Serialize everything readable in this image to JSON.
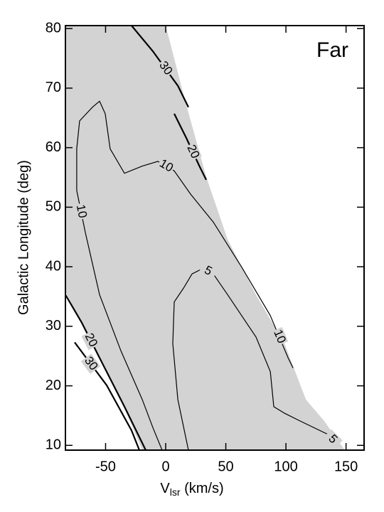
{
  "chart_data": {
    "type": "contour",
    "annotation": "Far",
    "x_label": {
      "main": "V",
      "sub": "lsr",
      "rest": " (km/s)"
    },
    "y_label": "Galactic Longitude (deg)",
    "xlim": [
      -83.4,
      165
    ],
    "ylim": [
      9.2,
      80.5
    ],
    "xticks": [
      -50,
      0,
      50,
      100,
      150
    ],
    "yticks": [
      10,
      20,
      30,
      40,
      50,
      60,
      70,
      80
    ],
    "shaded_region": {
      "color": "#d3d3d3",
      "x": [
        -83.4,
        0,
        16,
        33.7,
        51.5,
        75.1,
        98.8,
        116.6,
        131.4,
        149,
        -19.5,
        -37.3,
        -61,
        -83.4
      ],
      "y": [
        80.5,
        80.5,
        68.0,
        55.1,
        44.6,
        35.3,
        27.1,
        17.7,
        14.2,
        9.2,
        9.2,
        17.7,
        27.1,
        35.8
      ]
    },
    "series": [
      {
        "name": "30",
        "color": "#000000",
        "x": [
          -28.4,
          -10.7,
          10.1,
          18.9
        ],
        "y": [
          80.5,
          76.2,
          70.4,
          66.8
        ]
      },
      {
        "name": "20",
        "color": "#000000",
        "x": [
          7.1,
          17.2,
          27.8,
          33.7
        ],
        "y": [
          65.7,
          61.6,
          57.0,
          54.6
        ]
      },
      {
        "name": "10",
        "color": "#000000",
        "x": [
          -3.0,
          -10.7,
          -19.5,
          -37.3,
          -55.0,
          -66.9,
          -74.0,
          -74.0,
          -71.6,
          -60.9,
          -55.0,
          -50.3,
          -46.2,
          -34.3,
          -19.5,
          -6.5,
          7.1,
          20.7,
          39.6,
          63.3,
          87.0,
          101.8,
          105.9
        ],
        "y": [
          9.2,
          13.0,
          17.7,
          25.9,
          35.3,
          45.8,
          52.8,
          59.8,
          64.5,
          66.8,
          67.8,
          65.7,
          59.8,
          55.7,
          56.9,
          57.7,
          56.1,
          52.2,
          47.5,
          39.9,
          31.8,
          24.7,
          23.0
        ]
      },
      {
        "name": "5",
        "color": "#000000",
        "x": [
          18.9,
          10.1,
          5.9,
          7.1,
          14.8,
          21.9,
          30.8,
          39.6,
          51.5,
          75.1,
          87.0,
          89.9,
          98.8,
          110.7,
          134.3,
          143.2
        ],
        "y": [
          9.2,
          17.7,
          27.1,
          34.1,
          36.4,
          38.8,
          39.7,
          38.8,
          35.3,
          28.2,
          22.4,
          16.5,
          15.4,
          14.2,
          11.9,
          10.1
        ]
      },
      {
        "name": "20",
        "color": "#000000",
        "x": [
          -83.4,
          -69.8,
          -55.0,
          -34.3,
          -16.6
        ],
        "y": [
          35.3,
          30.6,
          24.7,
          16.5,
          9.2
        ]
      },
      {
        "name": "30",
        "color": "#000000",
        "x": [
          -75.7,
          -49.1,
          -28.4,
          -21.9
        ],
        "y": [
          27.3,
          20.1,
          12.5,
          9.2
        ]
      }
    ]
  }
}
